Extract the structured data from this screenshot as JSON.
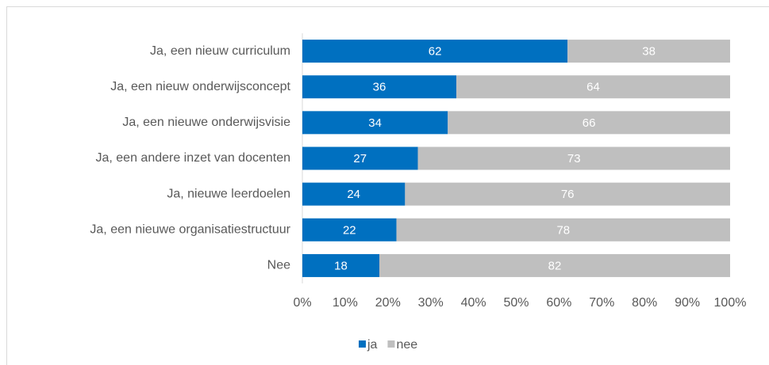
{
  "chart_data": {
    "type": "stacked-bar-horizontal",
    "categories": [
      "Ja, een nieuw curriculum",
      "Ja, een nieuw onderwijsconcept",
      "Ja, een nieuwe onderwijsvisie",
      "Ja, een andere inzet van docenten",
      "Ja, nieuwe leerdoelen",
      "Ja, een nieuwe organisatiestructuur",
      "Nee"
    ],
    "series": [
      {
        "name": "ja",
        "color": "#0070c0",
        "values": [
          62,
          36,
          34,
          27,
          24,
          22,
          18
        ]
      },
      {
        "name": "nee",
        "color": "#bfbfbf",
        "values": [
          38,
          64,
          66,
          73,
          76,
          78,
          82
        ]
      }
    ],
    "xlim": [
      0,
      100
    ],
    "xticks": [
      {
        "value": 0,
        "label": "0%"
      },
      {
        "value": 10,
        "label": "10%"
      },
      {
        "value": 20,
        "label": "20%"
      },
      {
        "value": 30,
        "label": "30%"
      },
      {
        "value": 40,
        "label": "40%"
      },
      {
        "value": 50,
        "label": "50%"
      },
      {
        "value": 60,
        "label": "60%"
      },
      {
        "value": 70,
        "label": "70%"
      },
      {
        "value": 80,
        "label": "80%"
      },
      {
        "value": 90,
        "label": "90%"
      },
      {
        "value": 100,
        "label": "100%"
      }
    ],
    "legend": "bottom"
  }
}
